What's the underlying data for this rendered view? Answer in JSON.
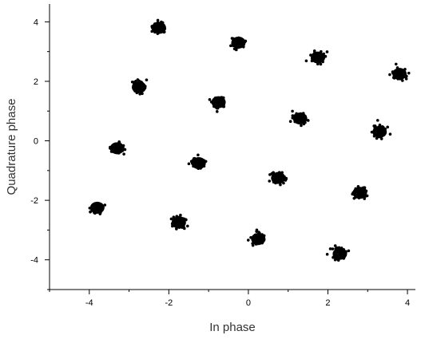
{
  "chart_data": {
    "type": "scatter",
    "title": "",
    "xlabel": "In phase",
    "ylabel": "Quadrature phase",
    "xlim": [
      -5,
      4.2
    ],
    "ylim": [
      -5,
      4.6
    ],
    "grid": false,
    "legend": "none",
    "x_ticks": [
      -4,
      -2,
      0,
      2,
      4
    ],
    "y_ticks": [
      -4,
      -2,
      0,
      2,
      4
    ],
    "marker_color": "#000000",
    "clusters": [
      {
        "x": -2.25,
        "y": 3.8
      },
      {
        "x": -0.25,
        "y": 3.3
      },
      {
        "x": 1.75,
        "y": 2.8
      },
      {
        "x": 3.8,
        "y": 2.25
      },
      {
        "x": -2.75,
        "y": 1.8
      },
      {
        "x": -0.75,
        "y": 1.3
      },
      {
        "x": 1.3,
        "y": 0.75
      },
      {
        "x": 3.3,
        "y": 0.3
      },
      {
        "x": -3.3,
        "y": -0.25
      },
      {
        "x": -1.25,
        "y": -0.75
      },
      {
        "x": 0.75,
        "y": -1.25
      },
      {
        "x": 2.8,
        "y": -1.75
      },
      {
        "x": -3.8,
        "y": -2.25
      },
      {
        "x": -1.75,
        "y": -2.75
      },
      {
        "x": 0.25,
        "y": -3.3
      },
      {
        "x": 2.3,
        "y": -3.8
      }
    ]
  }
}
